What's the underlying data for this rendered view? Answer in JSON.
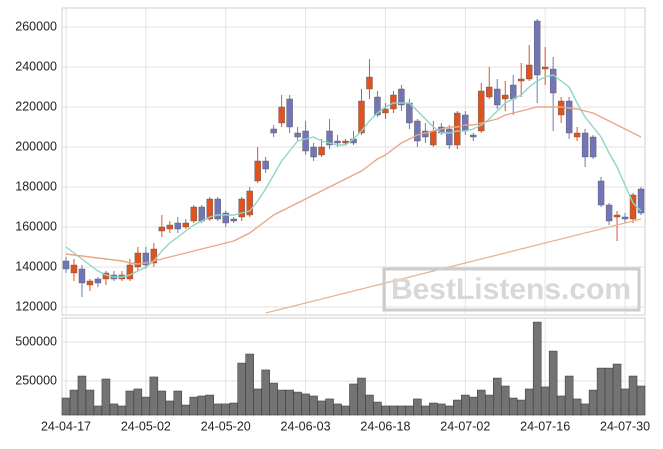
{
  "chart_data": [
    {
      "type": "candlestick",
      "categories": [
        "24-04-17",
        null,
        null,
        null,
        null,
        null,
        null,
        null,
        null,
        null,
        "24-05-02",
        null,
        null,
        null,
        null,
        null,
        null,
        null,
        null,
        null,
        "24-05-20",
        null,
        null,
        null,
        null,
        null,
        null,
        null,
        null,
        null,
        "24-06-03",
        null,
        null,
        null,
        null,
        null,
        null,
        null,
        null,
        null,
        "24-06-18",
        null,
        null,
        null,
        null,
        null,
        null,
        null,
        null,
        null,
        "24-07-02",
        null,
        null,
        null,
        null,
        null,
        null,
        null,
        null,
        null,
        "24-07-16",
        null,
        null,
        null,
        null,
        null,
        null,
        null,
        null,
        null,
        "24-07-30",
        null,
        null
      ],
      "open": [
        143000,
        137000,
        139000,
        131000,
        134000,
        134000,
        136000,
        134000,
        134000,
        140000,
        147000,
        142000,
        158000,
        159000,
        162000,
        160000,
        163000,
        170000,
        164000,
        174000,
        167000,
        164000,
        165000,
        166000,
        183000,
        193000,
        209000,
        212000,
        224000,
        207000,
        208000,
        200000,
        196000,
        208000,
        203000,
        202000,
        204000,
        207000,
        229000,
        225000,
        217000,
        219000,
        229000,
        222000,
        213000,
        208000,
        201000,
        210000,
        209000,
        201000,
        216000,
        206000,
        208000,
        225000,
        229000,
        224000,
        231000,
        233000,
        234000,
        263000,
        239000,
        239000,
        216000,
        223000,
        205000,
        207000,
        205000,
        183000,
        171000,
        165000,
        165000,
        164000,
        179000
      ],
      "high": [
        145000,
        144000,
        141000,
        134000,
        135000,
        138000,
        138000,
        138000,
        144000,
        150000,
        150000,
        152000,
        166000,
        163000,
        165000,
        164000,
        171000,
        171000,
        175000,
        175000,
        168000,
        165000,
        175000,
        180000,
        200000,
        195000,
        211000,
        226000,
        226000,
        210000,
        213000,
        202000,
        204000,
        214000,
        206000,
        204000,
        208000,
        229000,
        244000,
        228000,
        222000,
        228000,
        231000,
        224000,
        214000,
        212000,
        213000,
        212000,
        211000,
        218000,
        218000,
        207000,
        232000,
        240000,
        234000,
        233000,
        236000,
        242000,
        251000,
        264000,
        250000,
        245000,
        225000,
        225000,
        210000,
        209000,
        206000,
        185000,
        172000,
        168000,
        167000,
        177000,
        180000
      ],
      "low": [
        137000,
        133000,
        125000,
        128000,
        130000,
        131000,
        133000,
        133000,
        133000,
        138000,
        139000,
        140000,
        155000,
        157000,
        157000,
        159000,
        162000,
        162000,
        163000,
        163000,
        160000,
        162000,
        163000,
        165000,
        182000,
        187000,
        205000,
        210000,
        207000,
        203000,
        196000,
        193000,
        195000,
        199000,
        200000,
        201000,
        201000,
        206000,
        224000,
        215000,
        214000,
        217000,
        218000,
        209000,
        200000,
        202000,
        200000,
        206000,
        199000,
        199000,
        206000,
        203000,
        207000,
        224000,
        219000,
        218000,
        216000,
        225000,
        233000,
        222000,
        231000,
        208000,
        212000,
        204000,
        203000,
        190000,
        194000,
        170000,
        161000,
        153000,
        162000,
        162000,
        166000
      ],
      "close": [
        139000,
        141000,
        132000,
        133000,
        132000,
        137000,
        134000,
        136000,
        141000,
        147000,
        141000,
        149000,
        160000,
        161000,
        159000,
        162000,
        170000,
        163000,
        174000,
        164000,
        162000,
        163000,
        174000,
        178000,
        193000,
        189000,
        207000,
        220000,
        210000,
        205000,
        198000,
        195000,
        200000,
        201000,
        202000,
        203000,
        202000,
        223000,
        235000,
        216000,
        219000,
        226000,
        221000,
        212000,
        203000,
        205000,
        208000,
        207000,
        201000,
        217000,
        208000,
        205000,
        228000,
        230000,
        221000,
        226000,
        224000,
        234000,
        241000,
        236000,
        240000,
        227000,
        223000,
        207000,
        207000,
        195000,
        195000,
        171000,
        163000,
        166000,
        164000,
        176000,
        167000
      ],
      "up_color": "#e2521f",
      "down_color": "#7276b8",
      "series": [
        {
          "color": "#8fd6c4",
          "values": [
            150000,
            147000,
            144000,
            141000,
            138000,
            136000,
            135000,
            135000,
            136000,
            138000,
            140000,
            143000,
            148000,
            152000,
            155000,
            158000,
            161000,
            163000,
            165000,
            166000,
            166000,
            166000,
            167000,
            168000,
            173000,
            179000,
            186000,
            193000,
            198000,
            203000,
            204000,
            205000,
            203000,
            202000,
            201000,
            201000,
            204000,
            208000,
            213000,
            217000,
            220000,
            222000,
            222000,
            222000,
            218000,
            214000,
            210000,
            207000,
            207000,
            208000,
            208000,
            209000,
            211000,
            214000,
            218000,
            222000,
            224000,
            226000,
            230000,
            233000,
            235000,
            236000,
            233000,
            230000,
            222000,
            215000,
            210000,
            205000,
            197000,
            190000,
            181000,
            172000,
            168000
          ]
        },
        {
          "color": "#e9a686",
          "values": [
            146500,
            146000,
            145500,
            145000,
            144500,
            144000,
            143500,
            143000,
            142000,
            141500,
            142000,
            143000,
            144000,
            145000,
            146000,
            147000,
            148000,
            149000,
            150000,
            151000,
            152000,
            153000,
            155000,
            157000,
            160000,
            163000,
            166000,
            168000,
            170000,
            172000,
            174000,
            176000,
            178000,
            180000,
            182000,
            184000,
            186000,
            188000,
            191000,
            194000,
            196000,
            199000,
            202000,
            204000,
            206000,
            207000,
            208000,
            209000,
            210000,
            210000,
            211000,
            211000,
            212000,
            213000,
            214000,
            216000,
            217000,
            218000,
            219000,
            220000,
            220000,
            220000,
            220000,
            219500,
            219000,
            218000,
            217000,
            215000,
            213000,
            211000,
            209000,
            207000,
            205000
          ]
        },
        {
          "color": "#e8b690",
          "values": [
            null,
            null,
            null,
            null,
            null,
            null,
            null,
            null,
            null,
            null,
            null,
            null,
            null,
            null,
            null,
            null,
            null,
            null,
            null,
            null,
            null,
            null,
            null,
            null,
            null,
            117000,
            118000,
            119000,
            120000,
            121000,
            122000,
            123000,
            124000,
            125000,
            126000,
            127000,
            128000,
            129000,
            130000,
            131000,
            132000,
            133000,
            134000,
            135000,
            136000,
            137000,
            138000,
            139000,
            140000,
            141000,
            142000,
            143000,
            144000,
            145000,
            146000,
            147000,
            148000,
            149000,
            150000,
            151000,
            152000,
            153000,
            154000,
            155000,
            156000,
            157000,
            158000,
            159000,
            160000,
            161000,
            162000,
            163000,
            164000
          ]
        }
      ],
      "ylim": [
        116000,
        269500
      ],
      "yticks": [
        120000,
        140000,
        160000,
        180000,
        200000,
        220000,
        240000,
        260000
      ],
      "grid": true,
      "annotation": "BestListens.com"
    },
    {
      "type": "bar",
      "values": [
        141000,
        192000,
        282000,
        192000,
        90000,
        263000,
        103000,
        90000,
        186000,
        199000,
        147000,
        276000,
        186000,
        122000,
        186000,
        96000,
        147000,
        154000,
        160000,
        103000,
        103000,
        109000,
        365000,
        423000,
        199000,
        321000,
        237000,
        192000,
        192000,
        179000,
        167000,
        154000,
        122000,
        135000,
        103000,
        90000,
        231000,
        269000,
        160000,
        115000,
        90000,
        90000,
        90000,
        90000,
        135000,
        90000,
        109000,
        103000,
        90000,
        128000,
        160000,
        147000,
        192000,
        160000,
        269000,
        218000,
        141000,
        128000,
        199000,
        628000,
        212000,
        442000,
        154000,
        282000,
        135000,
        103000,
        192000,
        333000,
        333000,
        359000,
        199000,
        282000,
        218000
      ],
      "color": "#737373",
      "ylim": [
        32000,
        654000
      ],
      "yticks": [
        250000,
        500000
      ],
      "grid": true
    }
  ]
}
